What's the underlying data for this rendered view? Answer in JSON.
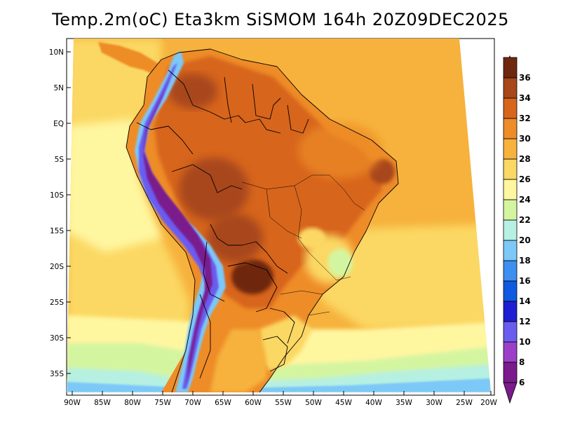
{
  "title": "Temp.2m(oC) Eta3km SiSMOM 164h 20Z09DEC2025",
  "lat_ticks": [
    "10N",
    "5N",
    "EQ",
    "5S",
    "10S",
    "15S",
    "20S",
    "25S",
    "30S",
    "35S"
  ],
  "lon_ticks": [
    "90W",
    "85W",
    "80W",
    "75W",
    "70W",
    "65W",
    "60W",
    "55W",
    "50W",
    "45W",
    "40W",
    "35W",
    "30W",
    "25W",
    "20W"
  ],
  "colorbar": {
    "labels": [
      "6",
      "8",
      "10",
      "12",
      "14",
      "16",
      "18",
      "20",
      "22",
      "24",
      "26",
      "28",
      "30",
      "32",
      "34",
      "36"
    ],
    "colors": [
      "#7a1a8c",
      "#9b3fc8",
      "#6b5cf0",
      "#1e1ed2",
      "#0f5ae0",
      "#3d8ff0",
      "#7cc8f8",
      "#b6f0e2",
      "#d4f5a0",
      "#fff6a0",
      "#fbd864",
      "#f6b23c",
      "#ee8c28",
      "#d7651c",
      "#a8471a",
      "#6e2810"
    ]
  },
  "chart_data": {
    "type": "heatmap",
    "title": "Temp.2m(oC) Eta3km SiSMOM 164h 20Z09DEC2025",
    "variable": "2 m air temperature",
    "units": "oC",
    "lon_range": [
      -90,
      -20
    ],
    "lat_range": [
      -37,
      11
    ],
    "levels": [
      6,
      8,
      10,
      12,
      14,
      16,
      18,
      20,
      22,
      24,
      26,
      28,
      30,
      32,
      34,
      36
    ]
  }
}
